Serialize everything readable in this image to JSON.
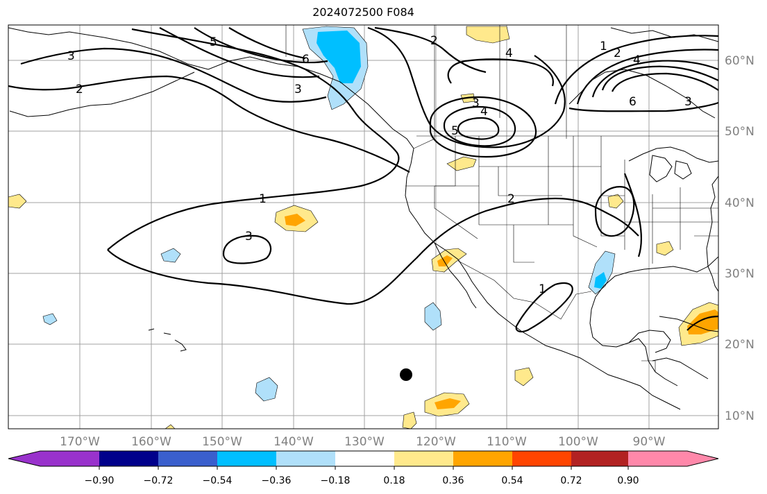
{
  "title": "2024072500 F084",
  "map": {
    "lon_labels": [
      "170°W",
      "160°W",
      "150°W",
      "140°W",
      "130°W",
      "120°W",
      "110°W",
      "100°W",
      "90°W"
    ],
    "lat_labels": [
      "60°N",
      "50°N",
      "40°N",
      "30°N",
      "20°N",
      "10°N"
    ],
    "contour_labels": [
      "3",
      "2",
      "5",
      "6",
      "3",
      "4",
      "6",
      "3",
      "1",
      "2",
      "4",
      "3",
      "4",
      "5",
      "1",
      "3",
      "2",
      "1"
    ],
    "gridlines": true
  },
  "colorbar": {
    "tick_labels": [
      "−0.90",
      "−0.72",
      "−0.54",
      "−0.36",
      "−0.18",
      "0.18",
      "0.36",
      "0.54",
      "0.72",
      "0.90"
    ],
    "colors": [
      "#9932cc",
      "#00008b",
      "#3a5fcd",
      "#00bfff",
      "#b0e0fa",
      "#ffffff",
      "#ffe98c",
      "#ffa500",
      "#ff4500",
      "#b22222",
      "#ff88aa"
    ],
    "extend": "both"
  },
  "marker": {
    "icon": "filled-circle"
  }
}
